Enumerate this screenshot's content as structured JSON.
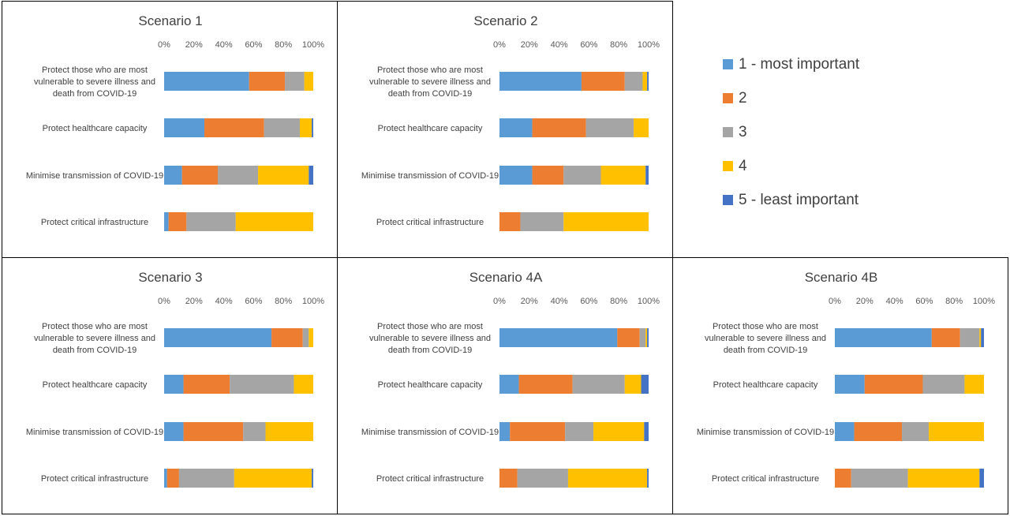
{
  "legend": [
    {
      "label": "1 - most important",
      "color": "#5B9BD5"
    },
    {
      "label": "2",
      "color": "#ED7D31"
    },
    {
      "label": "3",
      "color": "#A5A5A5"
    },
    {
      "label": "4",
      "color": "#FFC000"
    },
    {
      "label": "5 - least important",
      "color": "#4472C4"
    }
  ],
  "chart_data": [
    {
      "type": "bar",
      "stacked": true,
      "orientation": "horizontal",
      "title": "Scenario 1",
      "x_ticks": [
        "0%",
        "20%",
        "40%",
        "60%",
        "80%",
        "100%"
      ],
      "xlim": [
        0,
        100
      ],
      "categories": [
        [
          "Protect those who are most",
          "vulnerable to severe illness and",
          "death from COVID-19"
        ],
        [
          "Protect healthcare capacity"
        ],
        [
          "Minimise transmission of COVID-19"
        ],
        [
          "Protect critical infrastructure"
        ]
      ],
      "series": [
        {
          "name": "1 - most important",
          "values": [
            57,
            27,
            12,
            3
          ]
        },
        {
          "name": "2",
          "values": [
            24,
            40,
            24,
            12
          ]
        },
        {
          "name": "3",
          "values": [
            13,
            24,
            27,
            33
          ]
        },
        {
          "name": "4",
          "values": [
            6,
            8,
            34,
            52
          ]
        },
        {
          "name": "5 - least important",
          "values": [
            0,
            1,
            3,
            0
          ]
        }
      ]
    },
    {
      "type": "bar",
      "stacked": true,
      "orientation": "horizontal",
      "title": "Scenario 2",
      "x_ticks": [
        "0%",
        "20%",
        "40%",
        "60%",
        "80%",
        "100%"
      ],
      "xlim": [
        0,
        100
      ],
      "categories": [
        [
          "Protect those who are most",
          "vulnerable to severe illness and",
          "death from COVID-19"
        ],
        [
          "Protect healthcare capacity"
        ],
        [
          "Minimise transmission of COVID-19"
        ],
        [
          "Protect critical infrastructure"
        ]
      ],
      "series": [
        {
          "name": "1 - most important",
          "values": [
            55,
            22,
            22,
            0
          ]
        },
        {
          "name": "2",
          "values": [
            29,
            36,
            21,
            14
          ]
        },
        {
          "name": "3",
          "values": [
            12,
            32,
            25,
            29
          ]
        },
        {
          "name": "4",
          "values": [
            3,
            10,
            30,
            57
          ]
        },
        {
          "name": "5 - least important",
          "values": [
            1,
            0,
            2,
            0
          ]
        }
      ]
    },
    {
      "type": "bar",
      "stacked": true,
      "orientation": "horizontal",
      "title": "Scenario 3",
      "x_ticks": [
        "0%",
        "20%",
        "40%",
        "60%",
        "80%",
        "100%"
      ],
      "xlim": [
        0,
        100
      ],
      "categories": [
        [
          "Protect those who are most",
          "vulnerable to severe illness and",
          "death from COVID-19"
        ],
        [
          "Protect healthcare capacity"
        ],
        [
          "Minimise transmission of COVID-19"
        ],
        [
          "Protect critical infrastructure"
        ]
      ],
      "series": [
        {
          "name": "1 - most important",
          "values": [
            72,
            13,
            13,
            2
          ]
        },
        {
          "name": "2",
          "values": [
            21,
            31,
            40,
            8
          ]
        },
        {
          "name": "3",
          "values": [
            4,
            43,
            15,
            37
          ]
        },
        {
          "name": "4",
          "values": [
            3,
            13,
            32,
            52
          ]
        },
        {
          "name": "5 - least important",
          "values": [
            0,
            0,
            0,
            1
          ]
        }
      ]
    },
    {
      "type": "bar",
      "stacked": true,
      "orientation": "horizontal",
      "title": "Scenario 4A",
      "x_ticks": [
        "0%",
        "20%",
        "40%",
        "60%",
        "80%",
        "100%"
      ],
      "xlim": [
        0,
        100
      ],
      "categories": [
        [
          "Protect those who are most",
          "vulnerable to severe illness and",
          "death from COVID-19"
        ],
        [
          "Protect healthcare capacity"
        ],
        [
          "Minimise transmission of COVID-19"
        ],
        [
          "Protect critical infrastructure"
        ]
      ],
      "series": [
        {
          "name": "1 - most important",
          "values": [
            79,
            13,
            7,
            0
          ]
        },
        {
          "name": "2",
          "values": [
            15,
            36,
            37,
            12
          ]
        },
        {
          "name": "3",
          "values": [
            4,
            35,
            19,
            34
          ]
        },
        {
          "name": "4",
          "values": [
            1,
            11,
            34,
            53
          ]
        },
        {
          "name": "5 - least important",
          "values": [
            1,
            5,
            3,
            1
          ]
        }
      ]
    },
    {
      "type": "bar",
      "stacked": true,
      "orientation": "horizontal",
      "title": "Scenario 4B",
      "x_ticks": [
        "0%",
        "20%",
        "40%",
        "60%",
        "80%",
        "100%"
      ],
      "xlim": [
        0,
        100
      ],
      "categories": [
        [
          "Protect those who are most",
          "vulnerable to severe illness and",
          "death from COVID-19"
        ],
        [
          "Protect healthcare capacity"
        ],
        [
          "Minimise transmission of COVID-19"
        ],
        [
          "Protect critical infrastructure"
        ]
      ],
      "series": [
        {
          "name": "1 - most important",
          "values": [
            65,
            20,
            13,
            0
          ]
        },
        {
          "name": "2",
          "values": [
            19,
            39,
            32,
            11
          ]
        },
        {
          "name": "3",
          "values": [
            13,
            28,
            18,
            38
          ]
        },
        {
          "name": "4",
          "values": [
            1,
            13,
            37,
            48
          ]
        },
        {
          "name": "5 - least important",
          "values": [
            2,
            0,
            0,
            3
          ]
        }
      ]
    }
  ]
}
